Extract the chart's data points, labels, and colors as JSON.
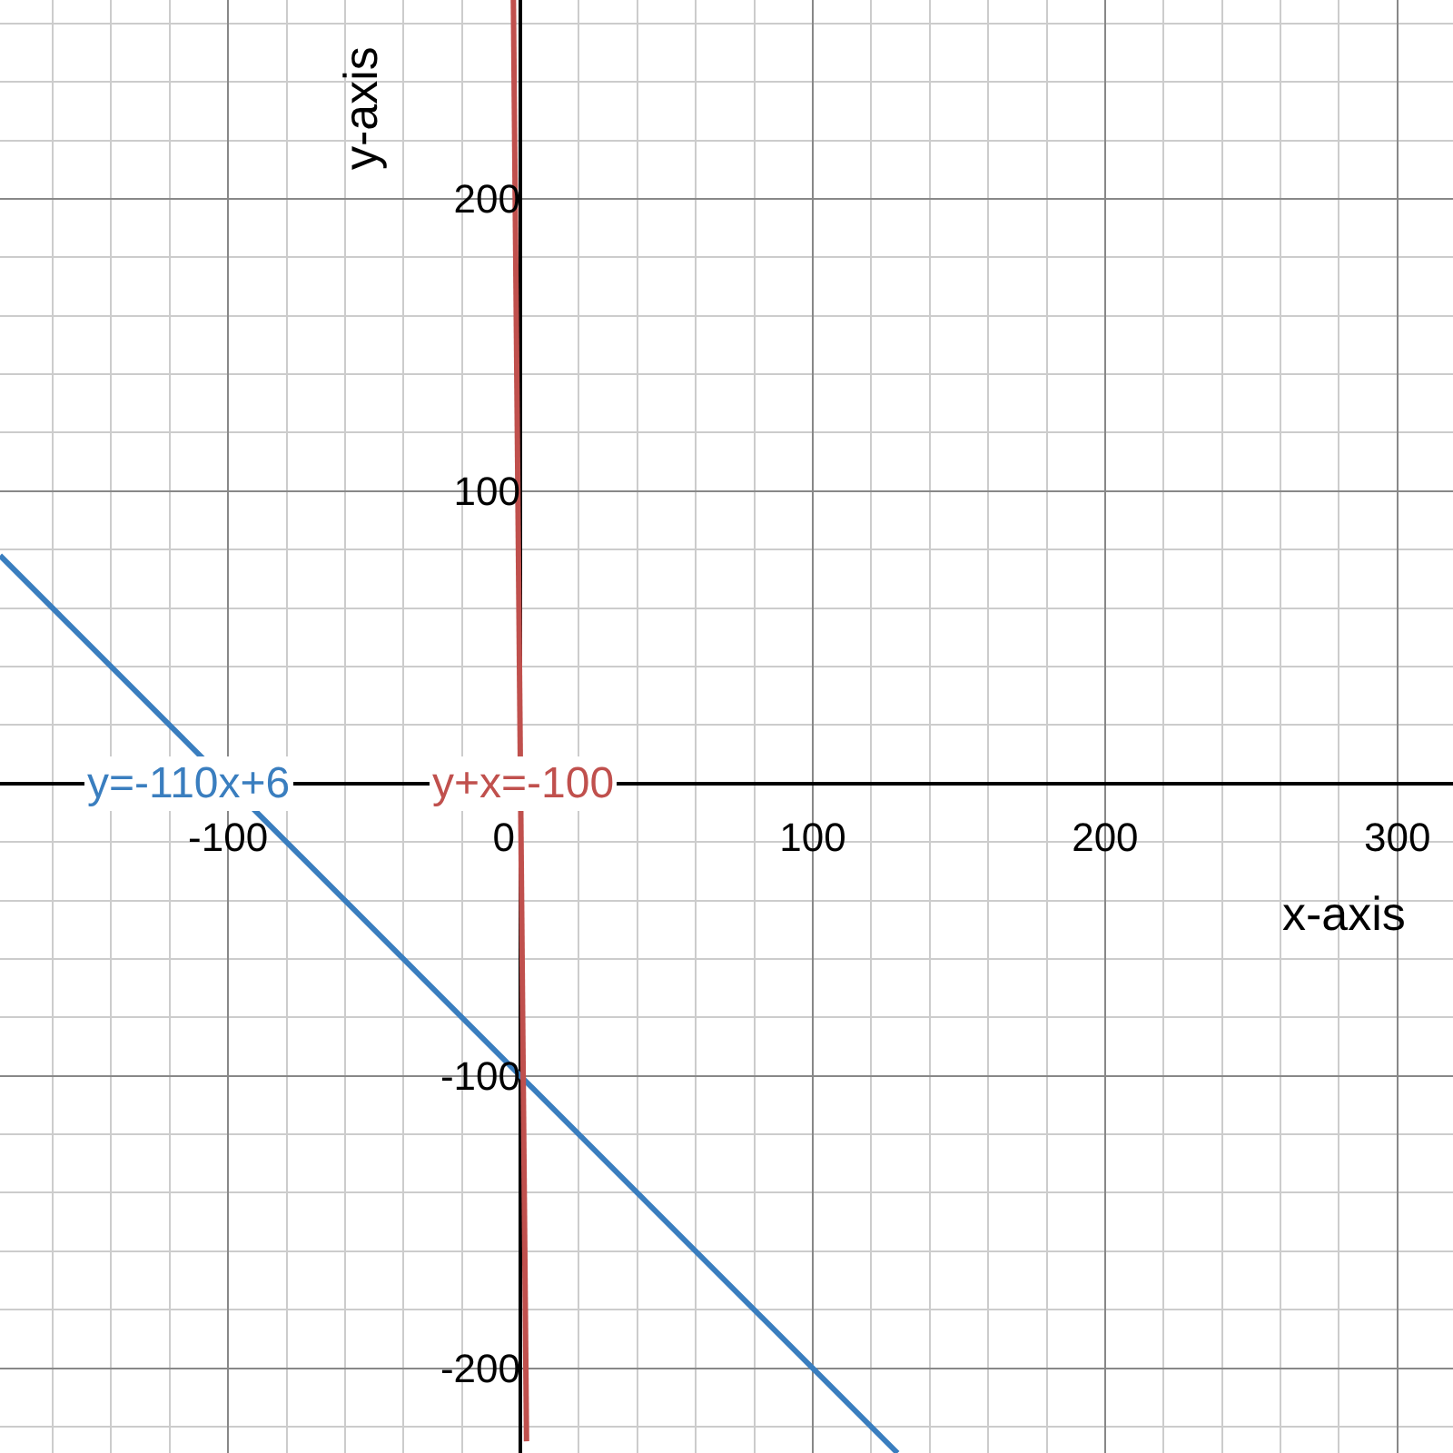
{
  "chart_data": {
    "type": "line",
    "xlabel": "x-axis",
    "ylabel": "y-axis",
    "series": [
      {
        "name": "y=-110x+6",
        "color": "#3a7ebf",
        "x": [
          -178,
          129
        ],
        "values": [
          78,
          -229
        ]
      },
      {
        "name": "y+x=-100",
        "color": "#c0504d",
        "x": [
          -2.4,
          2.1
        ],
        "values": [
          268,
          -225
        ]
      }
    ],
    "xlim": [
      -178,
      319
    ],
    "ylim": [
      -229,
      268
    ],
    "xticks": [
      -100,
      0,
      100,
      200,
      300
    ],
    "yticks": [
      -200,
      -100,
      100,
      200
    ],
    "grid": true,
    "legend": false,
    "marker": "none",
    "line_style": "solid"
  }
}
